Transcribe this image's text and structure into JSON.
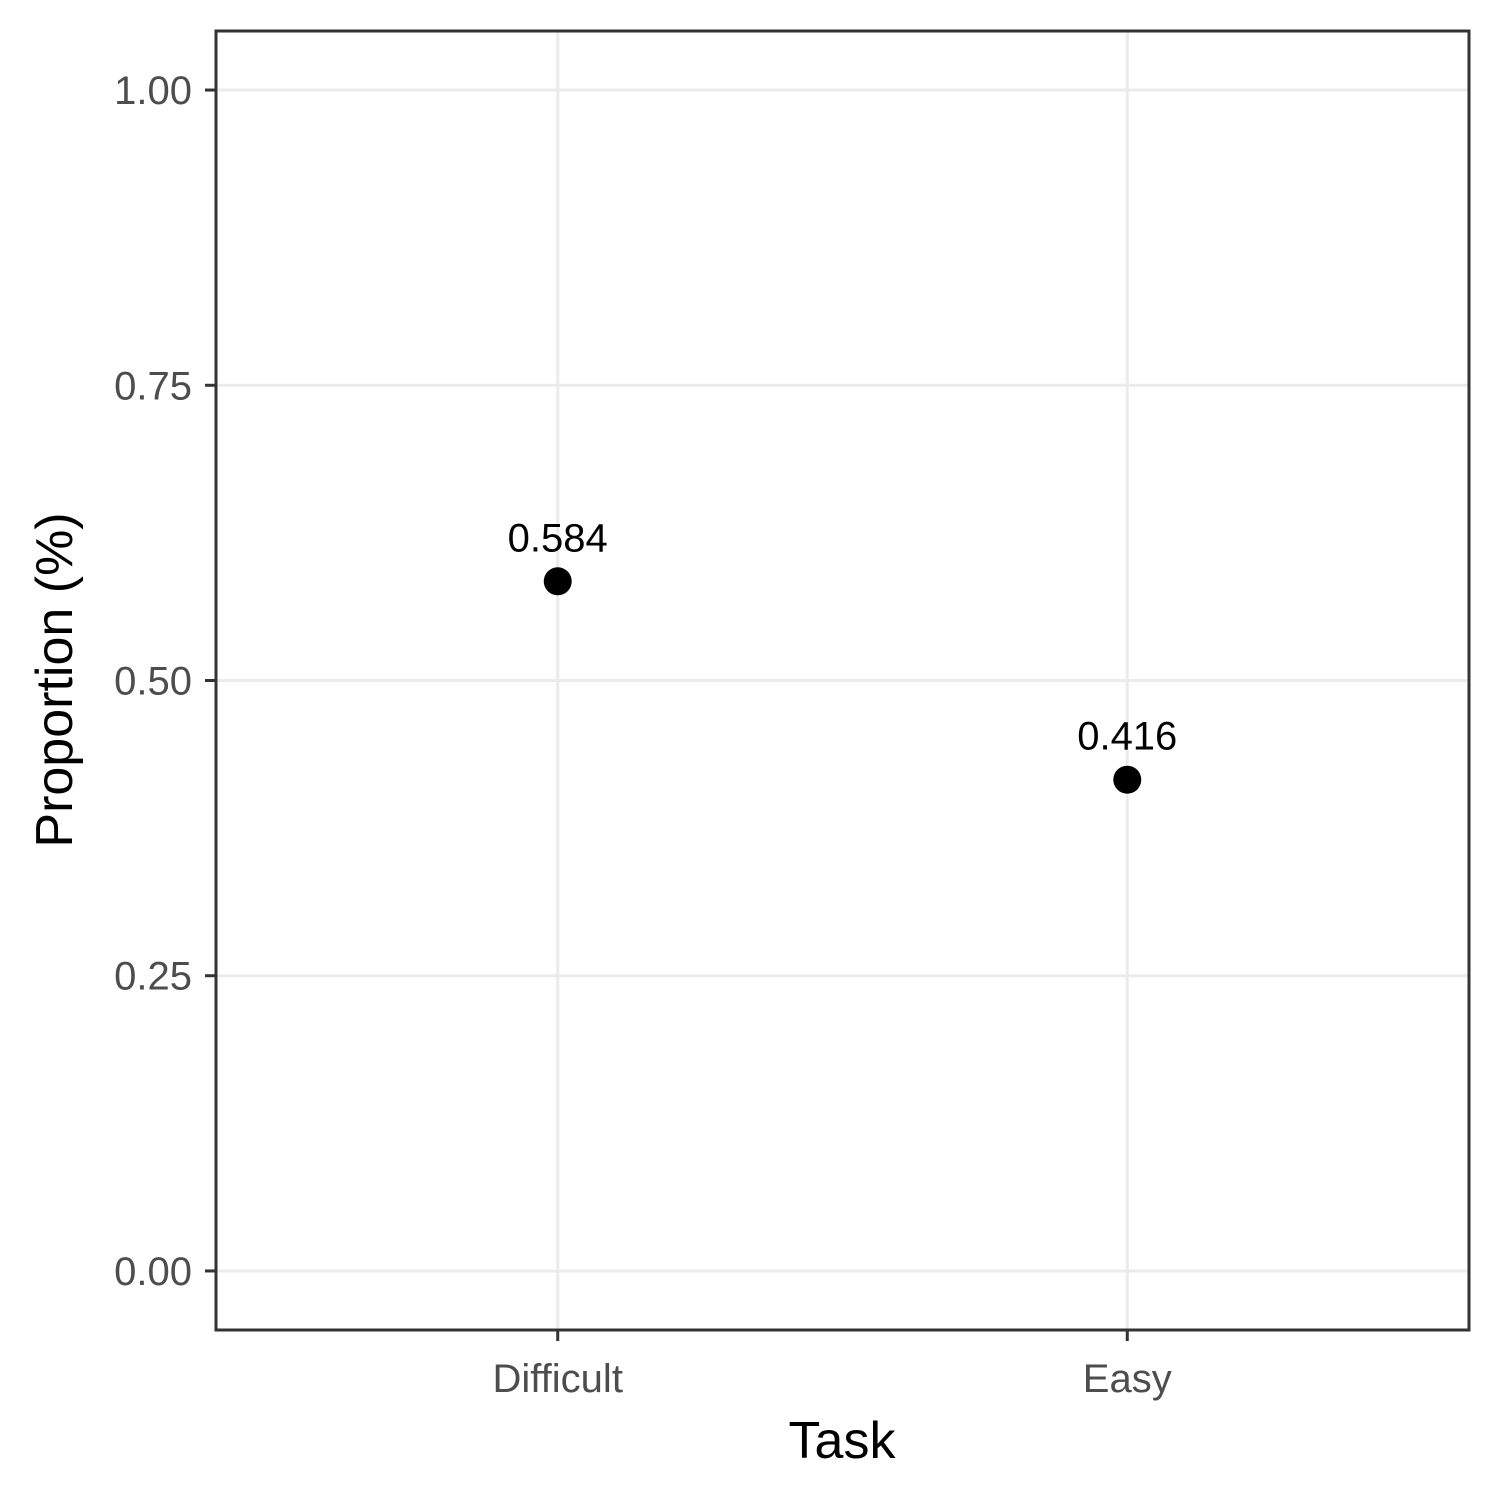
{
  "chart_data": {
    "type": "scatter",
    "categories": [
      "Difficult",
      "Easy"
    ],
    "values": [
      0.584,
      0.416
    ],
    "data_labels": [
      "0.584",
      "0.416"
    ],
    "xlabel": "Task",
    "ylabel": "Proportion (%)",
    "ylim": [
      -0.05,
      1.05
    ],
    "yticks": [
      0,
      0.25,
      0.5,
      0.75,
      1.0
    ],
    "ytick_labels": [
      "0.00",
      "0.25",
      "0.50",
      "0.75",
      "1.00"
    ],
    "grid": true,
    "legend": "none",
    "colors": {
      "point": "#000000",
      "grid": "#ebebeb",
      "border": "#333333"
    }
  }
}
